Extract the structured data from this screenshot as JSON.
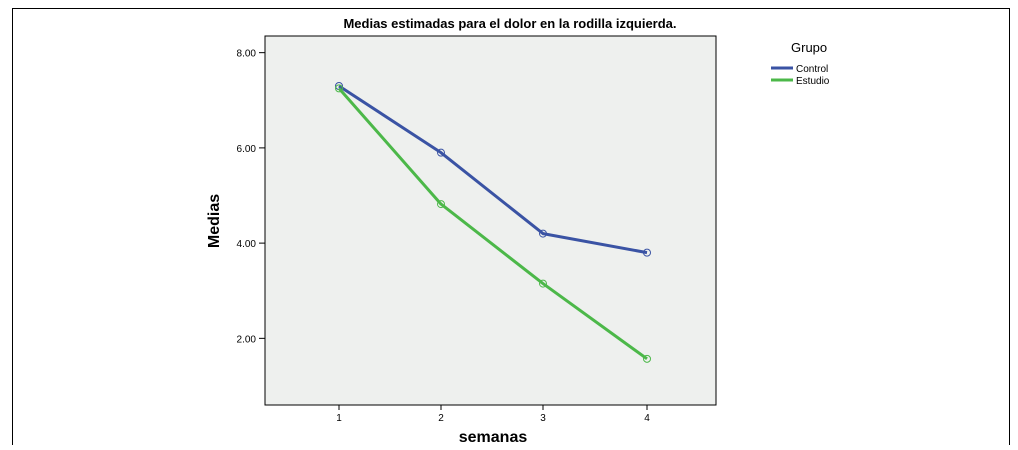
{
  "chart_data": {
    "type": "line",
    "title": "Medias estimadas para el dolor en la rodilla izquierda.",
    "xlabel": "semanas",
    "ylabel": "Medias",
    "categories": [
      "1",
      "2",
      "3",
      "4"
    ],
    "y_ticks": [
      "2.00",
      "4.00",
      "6.00",
      "8.00"
    ],
    "ylim": [
      0.6,
      8.35
    ],
    "legend": {
      "title": "Grupo",
      "position": "right"
    },
    "series": [
      {
        "name": "Control",
        "values": [
          7.3,
          5.9,
          4.2,
          3.8
        ],
        "color": "#3a53a4"
      },
      {
        "name": "Estudio",
        "values": [
          7.25,
          4.82,
          3.15,
          1.57
        ],
        "color": "#4cb849"
      }
    ],
    "plot_background": "#eef0ee",
    "grid": false
  }
}
